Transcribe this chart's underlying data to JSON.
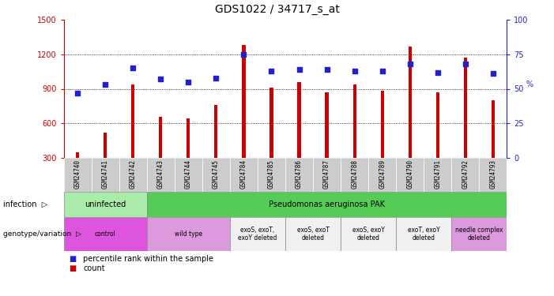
{
  "title": "GDS1022 / 34717_s_at",
  "samples": [
    "GSM24740",
    "GSM24741",
    "GSM24742",
    "GSM24743",
    "GSM24744",
    "GSM24745",
    "GSM24784",
    "GSM24785",
    "GSM24786",
    "GSM24787",
    "GSM24788",
    "GSM24789",
    "GSM24790",
    "GSM24791",
    "GSM24792",
    "GSM24793"
  ],
  "counts": [
    350,
    520,
    940,
    660,
    640,
    760,
    1280,
    910,
    960,
    870,
    940,
    880,
    1270,
    870,
    1170,
    800
  ],
  "percentiles": [
    47,
    53,
    65,
    57,
    55,
    58,
    75,
    63,
    64,
    64,
    63,
    63,
    68,
    62,
    68,
    61
  ],
  "ylim_left": [
    300,
    1500
  ],
  "ylim_right": [
    0,
    100
  ],
  "yticks_left": [
    300,
    600,
    900,
    1200,
    1500
  ],
  "yticks_right": [
    0,
    25,
    50,
    75,
    100
  ],
  "bar_color": "#cc0000",
  "dot_color": "#2222cc",
  "grid_color": "#555555",
  "tick_label_color_left": "#cc0000",
  "tick_label_color_right": "#2222cc",
  "bg_color": "#ffffff",
  "bar_width": 0.12,
  "infection_regions": [
    {
      "text": "uninfected",
      "start": 0,
      "end": 3,
      "color": "#aaeaaa"
    },
    {
      "text": "Pseudomonas aeruginosa PAK",
      "start": 3,
      "end": 16,
      "color": "#55cc55"
    }
  ],
  "genotype_regions": [
    {
      "text": "control",
      "start": 0,
      "end": 3,
      "color": "#dd55dd"
    },
    {
      "text": "wild type",
      "start": 3,
      "end": 6,
      "color": "#dd99dd"
    },
    {
      "text": "exoS, exoT,\nexoY deleted",
      "start": 6,
      "end": 8,
      "color": "#f0f0f0"
    },
    {
      "text": "exoS, exoT\ndeleted",
      "start": 8,
      "end": 10,
      "color": "#f0f0f0"
    },
    {
      "text": "exoS, exoY\ndeleted",
      "start": 10,
      "end": 12,
      "color": "#f0f0f0"
    },
    {
      "text": "exoT, exoY\ndeleted",
      "start": 12,
      "end": 14,
      "color": "#f0f0f0"
    },
    {
      "text": "needle complex\ndeleted",
      "start": 14,
      "end": 16,
      "color": "#dd99dd"
    }
  ],
  "legend_count": "count",
  "legend_percentile": "percentile rank within the sample"
}
